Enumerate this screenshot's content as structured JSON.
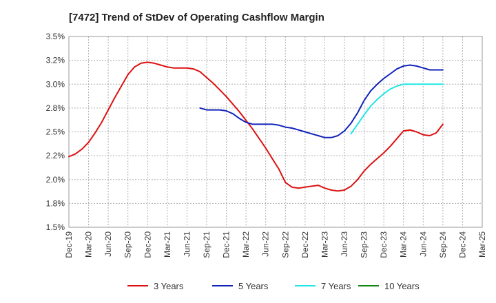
{
  "chart_data": {
    "type": "line",
    "title": "[7472]  Trend of StDev of Operating Cashflow Margin",
    "xlabel": "",
    "ylabel": "",
    "ylim": [
      1.5,
      3.5
    ],
    "y_ticks": [
      "1.5%",
      "1.8%",
      "2.0%",
      "2.2%",
      "2.5%",
      "2.8%",
      "3.0%",
      "3.2%",
      "3.5%"
    ],
    "y_tick_values": [
      1.5,
      1.75,
      2.0,
      2.25,
      2.5,
      2.75,
      3.0,
      3.25,
      3.5
    ],
    "categories": [
      "Dec-19",
      "Mar-20",
      "Jun-20",
      "Sep-20",
      "Dec-20",
      "Mar-21",
      "Jun-21",
      "Sep-21",
      "Dec-21",
      "Mar-22",
      "Jun-22",
      "Sep-22",
      "Dec-22",
      "Mar-23",
      "Jun-23",
      "Sep-23",
      "Dec-23",
      "Mar-24",
      "Jun-24",
      "Sep-24",
      "Dec-24",
      "Mar-25"
    ],
    "grid": true,
    "legend_position": "bottom",
    "series": [
      {
        "name": "3 Years",
        "color": "#dd1111",
        "points": [
          [
            0,
            2.24
          ],
          [
            0.333,
            2.27
          ],
          [
            0.667,
            2.32
          ],
          [
            1,
            2.39
          ],
          [
            1.333,
            2.49
          ],
          [
            1.667,
            2.6
          ],
          [
            2,
            2.73
          ],
          [
            2.333,
            2.86
          ],
          [
            2.667,
            2.98
          ],
          [
            3,
            3.1
          ],
          [
            3.333,
            3.18
          ],
          [
            3.667,
            3.22
          ],
          [
            4,
            3.23
          ],
          [
            4.333,
            3.22
          ],
          [
            4.667,
            3.2
          ],
          [
            5,
            3.18
          ],
          [
            5.333,
            3.17
          ],
          [
            5.667,
            3.17
          ],
          [
            6,
            3.17
          ],
          [
            6.333,
            3.16
          ],
          [
            6.667,
            3.13
          ],
          [
            7,
            3.07
          ],
          [
            7.333,
            3.01
          ],
          [
            7.667,
            2.94
          ],
          [
            8,
            2.87
          ],
          [
            8.333,
            2.79
          ],
          [
            8.667,
            2.71
          ],
          [
            9,
            2.62
          ],
          [
            9.333,
            2.53
          ],
          [
            9.667,
            2.43
          ],
          [
            10,
            2.33
          ],
          [
            10.333,
            2.22
          ],
          [
            10.667,
            2.11
          ],
          [
            11,
            1.97
          ],
          [
            11.333,
            1.92
          ],
          [
            11.667,
            1.91
          ],
          [
            12,
            1.92
          ],
          [
            12.333,
            1.93
          ],
          [
            12.667,
            1.94
          ],
          [
            13,
            1.91
          ],
          [
            13.333,
            1.89
          ],
          [
            13.667,
            1.88
          ],
          [
            14,
            1.89
          ],
          [
            14.333,
            1.93
          ],
          [
            14.667,
            2.0
          ],
          [
            15,
            2.09
          ],
          [
            15.333,
            2.16
          ],
          [
            15.667,
            2.22
          ],
          [
            16,
            2.28
          ],
          [
            16.333,
            2.35
          ],
          [
            16.667,
            2.43
          ],
          [
            17,
            2.51
          ],
          [
            17.333,
            2.52
          ],
          [
            17.667,
            2.5
          ],
          [
            18,
            2.47
          ],
          [
            18.333,
            2.46
          ],
          [
            18.667,
            2.49
          ],
          [
            19,
            2.58
          ]
        ]
      },
      {
        "name": "5 Years",
        "color": "#1122bb",
        "points": [
          [
            6.667,
            2.75
          ],
          [
            7,
            2.73
          ],
          [
            7.333,
            2.73
          ],
          [
            7.667,
            2.73
          ],
          [
            8,
            2.72
          ],
          [
            8.333,
            2.69
          ],
          [
            8.667,
            2.64
          ],
          [
            9,
            2.6
          ],
          [
            9.333,
            2.58
          ],
          [
            9.667,
            2.58
          ],
          [
            10,
            2.58
          ],
          [
            10.333,
            2.58
          ],
          [
            10.667,
            2.57
          ],
          [
            11,
            2.55
          ],
          [
            11.333,
            2.54
          ],
          [
            11.667,
            2.52
          ],
          [
            12,
            2.5
          ],
          [
            12.333,
            2.48
          ],
          [
            12.667,
            2.46
          ],
          [
            13,
            2.44
          ],
          [
            13.333,
            2.44
          ],
          [
            13.667,
            2.46
          ],
          [
            14,
            2.51
          ],
          [
            14.333,
            2.59
          ],
          [
            14.667,
            2.7
          ],
          [
            15,
            2.83
          ],
          [
            15.333,
            2.93
          ],
          [
            15.667,
            3.0
          ],
          [
            16,
            3.06
          ],
          [
            16.333,
            3.11
          ],
          [
            16.667,
            3.16
          ],
          [
            17,
            3.19
          ],
          [
            17.333,
            3.2
          ],
          [
            17.667,
            3.19
          ],
          [
            18,
            3.17
          ],
          [
            18.333,
            3.15
          ],
          [
            18.667,
            3.15
          ],
          [
            19,
            3.15
          ]
        ]
      },
      {
        "name": "7 Years",
        "color": "#22e5e5",
        "points": [
          [
            14.333,
            2.48
          ],
          [
            14.667,
            2.58
          ],
          [
            15,
            2.68
          ],
          [
            15.333,
            2.77
          ],
          [
            15.667,
            2.84
          ],
          [
            16,
            2.9
          ],
          [
            16.333,
            2.95
          ],
          [
            16.667,
            2.98
          ],
          [
            17,
            3.0
          ],
          [
            17.333,
            3.0
          ],
          [
            17.667,
            3.0
          ],
          [
            18,
            3.0
          ],
          [
            18.333,
            3.0
          ],
          [
            18.667,
            3.0
          ],
          [
            19,
            3.0
          ]
        ]
      },
      {
        "name": "10 Years",
        "color": "#118811",
        "points": []
      }
    ]
  }
}
